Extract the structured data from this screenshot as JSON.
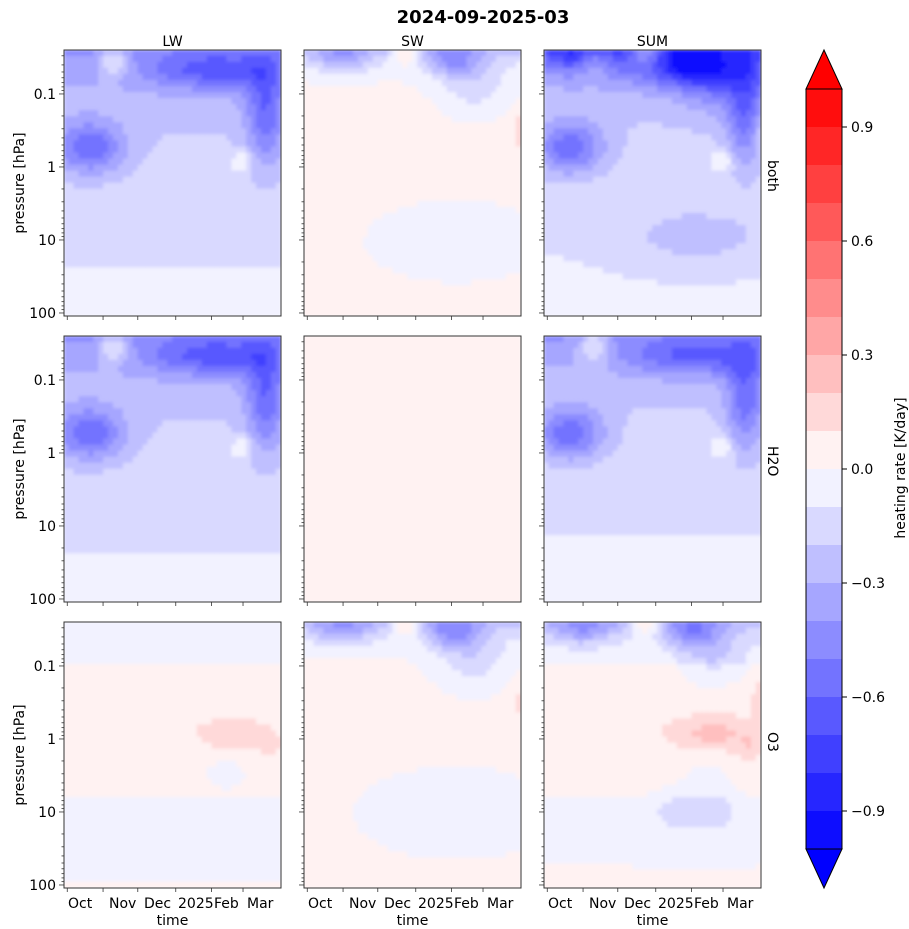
{
  "chart_data": {
    "type": "heatmap",
    "title": "2024-09-2025-03",
    "columns": [
      "LW",
      "SW",
      "SUM"
    ],
    "rows": [
      "both",
      "H2O",
      "O3"
    ],
    "ylabel": "pressure [hPa]",
    "xlabel": "time",
    "x_ticks": [
      "Oct",
      "Nov",
      "Dec",
      "2025",
      "Feb",
      "Mar"
    ],
    "y_ticks": [
      "0.1",
      "1",
      "10",
      "100"
    ],
    "y_tick_values": [
      0.1,
      1,
      10,
      100
    ],
    "y_scale": "log",
    "y_inverted": true,
    "ylim": [
      110,
      0.025
    ],
    "colorbar": {
      "label": "heating rate [K/day]",
      "ticks": [
        "0.9",
        "0.6",
        "0.3",
        "0.0",
        "−0.3",
        "−0.6",
        "−0.9"
      ],
      "tick_values": [
        0.9,
        0.6,
        0.3,
        0.0,
        -0.3,
        -0.6,
        -0.9
      ],
      "range": [
        -1.0,
        1.0
      ],
      "step": 0.1,
      "extend": "both",
      "cmap": "bwr"
    },
    "panel_summary": [
      {
        "row": "both",
        "col": "LW",
        "approx_range": [
          -0.75,
          -0.05
        ]
      },
      {
        "row": "both",
        "col": "SW",
        "approx_range": [
          -0.55,
          0.2
        ]
      },
      {
        "row": "both",
        "col": "SUM",
        "approx_range": [
          -1.0,
          -0.05
        ]
      },
      {
        "row": "H2O",
        "col": "LW",
        "approx_range": [
          -0.75,
          -0.05
        ]
      },
      {
        "row": "H2O",
        "col": "SW",
        "approx_range": [
          0.0,
          0.05
        ]
      },
      {
        "row": "H2O",
        "col": "SUM",
        "approx_range": [
          -0.75,
          -0.05
        ]
      },
      {
        "row": "O3",
        "col": "LW",
        "approx_range": [
          -0.1,
          0.25
        ]
      },
      {
        "row": "O3",
        "col": "SW",
        "approx_range": [
          -0.6,
          0.2
        ]
      },
      {
        "row": "O3",
        "col": "SUM",
        "approx_range": [
          -0.65,
          0.2
        ]
      }
    ]
  }
}
